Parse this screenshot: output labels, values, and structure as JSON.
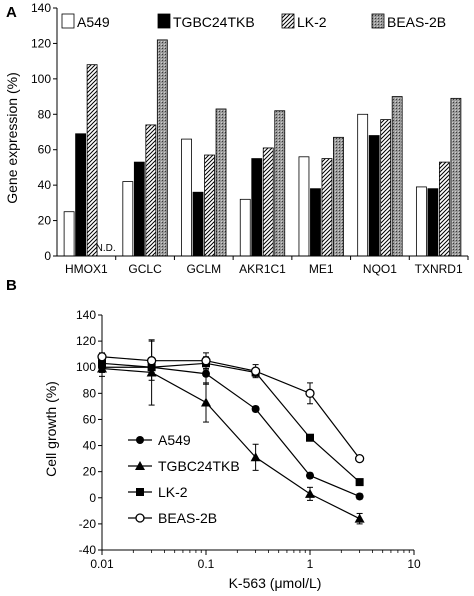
{
  "chart_data": [
    {
      "type": "bar",
      "panel_label": "A",
      "ylabel": "Gene expression (%)",
      "ylim": [
        0,
        140
      ],
      "yticks": [
        0,
        20,
        40,
        60,
        80,
        100,
        120,
        140
      ],
      "categories": [
        "HMOX1",
        "GCLC",
        "GCLM",
        "AKR1C1",
        "ME1",
        "NQO1",
        "TXNRD1"
      ],
      "legend_position": "top",
      "series": [
        {
          "name": "A549",
          "fill": "white",
          "values": [
            25,
            42,
            66,
            32,
            56,
            80,
            39
          ]
        },
        {
          "name": "TGBC24TKB",
          "fill": "black",
          "values": [
            69,
            53,
            36,
            55,
            38,
            68,
            38
          ]
        },
        {
          "name": "LK-2",
          "fill": "diagonal-hatch",
          "values": [
            108,
            74,
            57,
            61,
            55,
            77,
            53
          ]
        },
        {
          "name": "BEAS-2B",
          "fill": "gray-dotted",
          "values": [
            null,
            122,
            83,
            82,
            67,
            90,
            89
          ]
        }
      ],
      "annotations": [
        {
          "category": "HMOX1",
          "series": "BEAS-2B",
          "text": "N.D."
        }
      ]
    },
    {
      "type": "line",
      "panel_label": "B",
      "xlabel": "K-563 (μmol/L)",
      "ylabel": "Cell growth (%)",
      "xscale": "log",
      "xlim": [
        0.01,
        10
      ],
      "xticks": [
        "0.01",
        "0.1",
        "1",
        "10"
      ],
      "ylim": [
        -40,
        140
      ],
      "yticks": [
        -40,
        -20,
        0,
        20,
        40,
        60,
        80,
        100,
        120,
        140
      ],
      "legend_position": "lower-left",
      "x": [
        0.01,
        0.03,
        0.1,
        0.3,
        1,
        3
      ],
      "series": [
        {
          "name": "A549",
          "marker": "filled-circle",
          "values": [
            100,
            100,
            95,
            68,
            17,
            1
          ],
          "err": [
            4,
            4,
            8,
            2,
            2,
            2
          ]
        },
        {
          "name": "TGBC24TKB",
          "marker": "filled-triangle",
          "values": [
            99,
            96,
            73,
            31,
            3,
            -16
          ],
          "err": [
            6,
            25,
            15,
            10,
            5,
            4
          ]
        },
        {
          "name": "LK-2",
          "marker": "filled-square",
          "values": [
            103,
            100,
            103,
            96,
            46,
            12
          ],
          "err": [
            3,
            5,
            5,
            3,
            2,
            2
          ]
        },
        {
          "name": "BEAS-2B",
          "marker": "open-circle",
          "values": [
            108,
            105,
            105,
            97,
            80,
            30
          ],
          "err": [
            3,
            15,
            6,
            5,
            8,
            2
          ]
        }
      ]
    }
  ]
}
